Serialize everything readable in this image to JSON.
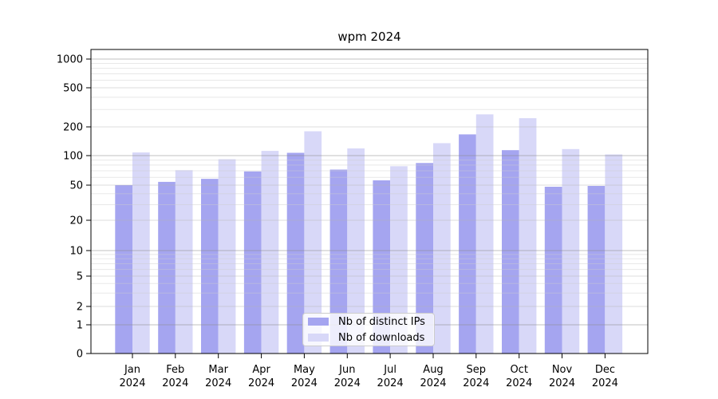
{
  "chart_data": {
    "type": "bar",
    "title": "wpm 2024",
    "categories": [
      "Jan",
      "Feb",
      "Mar",
      "Apr",
      "May",
      "Jun",
      "Jul",
      "Aug",
      "Sep",
      "Oct",
      "Nov",
      "Dec"
    ],
    "category_year": "2024",
    "series": [
      {
        "name": "Nb of distinct IPs",
        "color": "#a5a5f0",
        "values": [
          50,
          54,
          58,
          69,
          107,
          72,
          56,
          84,
          167,
          114,
          48,
          49
        ]
      },
      {
        "name": "Nb of downloads",
        "color": "#d8d8f8",
        "values": [
          108,
          71,
          92,
          112,
          180,
          119,
          78,
          135,
          268,
          245,
          117,
          103
        ]
      }
    ],
    "yscale": "symlog",
    "yticks": [
      0,
      1,
      2,
      5,
      10,
      20,
      50,
      100,
      200,
      500,
      1000
    ],
    "ylim": [
      0,
      1260
    ],
    "xlabel": "",
    "ylabel": "",
    "grid": true,
    "legend_position": "lower center"
  }
}
